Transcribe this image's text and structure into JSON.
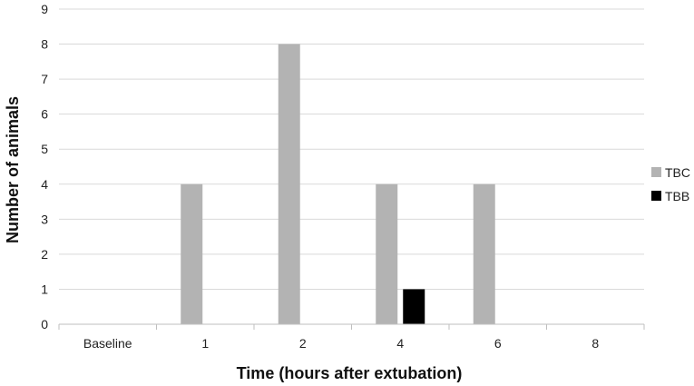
{
  "chart_data": {
    "type": "bar",
    "categories": [
      "Baseline",
      "1",
      "2",
      "4",
      "6",
      "8"
    ],
    "series": [
      {
        "name": "TBC",
        "values": [
          0,
          4,
          8,
          4,
          4,
          0
        ],
        "color": "#b3b3b3"
      },
      {
        "name": "TBB",
        "values": [
          0,
          0,
          0,
          1,
          0,
          0
        ],
        "color": "#000000"
      }
    ],
    "xlabel": "Time (hours after extubation)",
    "ylabel": "Number of animals",
    "ylim": [
      0,
      9
    ],
    "yticks": [
      "0",
      "1",
      "2",
      "3",
      "4",
      "5",
      "6",
      "7",
      "8",
      "9"
    ],
    "grid": true,
    "legend_position": "right"
  }
}
